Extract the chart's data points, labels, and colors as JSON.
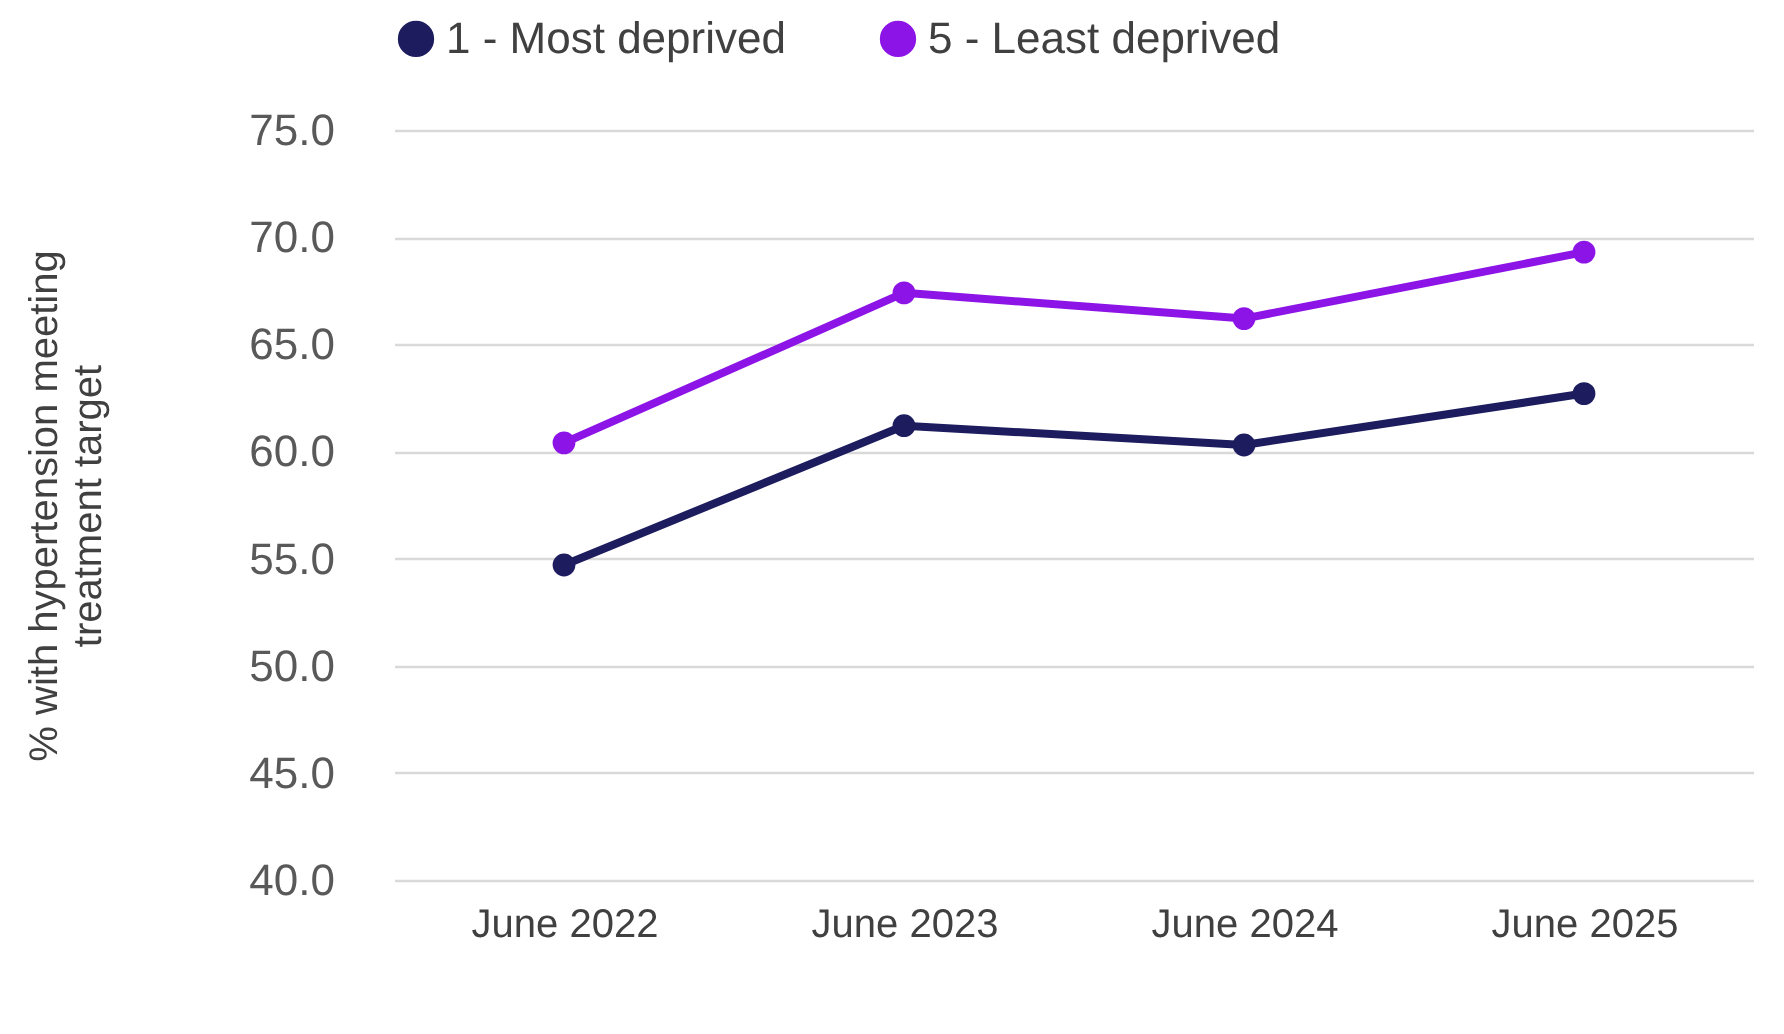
{
  "chart_data": {
    "type": "line",
    "ylabel": "% with hypertension meeting treatment target",
    "categories": [
      "June 2022",
      "June 2023",
      "June 2024",
      "June 2025"
    ],
    "series": [
      {
        "name": "1 - Most deprived",
        "color": "#1c1c5e",
        "values": [
          54.7,
          61.2,
          60.3,
          62.7
        ]
      },
      {
        "name": "5 - Least deprived",
        "color": "#8c14e6",
        "values": [
          60.4,
          67.4,
          66.2,
          69.3
        ]
      }
    ],
    "ylim": [
      40,
      75
    ],
    "yticks": [
      {
        "value": 40,
        "label": "40.0"
      },
      {
        "value": 45,
        "label": "45.0"
      },
      {
        "value": 50,
        "label": "50.0"
      },
      {
        "value": 55,
        "label": "55.0"
      },
      {
        "value": 60,
        "label": "60.0"
      },
      {
        "value": 65,
        "label": "65.0"
      },
      {
        "value": 70,
        "label": "70.0"
      },
      {
        "value": 75,
        "label": "75.0"
      }
    ],
    "grid": "y",
    "legend": "top",
    "marker": "circle",
    "line_style": "solid"
  }
}
